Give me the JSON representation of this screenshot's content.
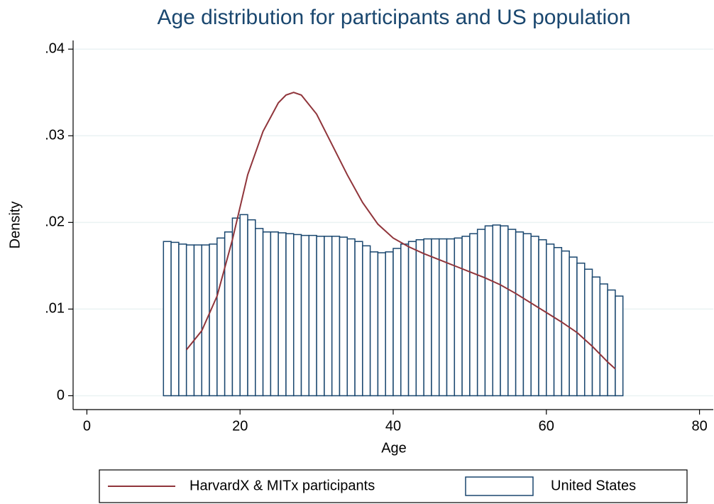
{
  "chart_data": {
    "type": "histogram",
    "title": "Age distribution for participants and US population",
    "x_label": "Age",
    "y_label": "Density",
    "xlim": [
      -1.8,
      81.8
    ],
    "ylim": [
      -0.0016,
      0.041
    ],
    "xticks": [
      0,
      20,
      40,
      60,
      80
    ],
    "yticks": [
      0,
      {
        "value": 0.01,
        "label": ".01"
      },
      {
        "value": 0.02,
        "label": ".02"
      },
      {
        "value": 0.03,
        "label": ".03"
      },
      {
        "value": 0.04,
        "label": ".04"
      }
    ],
    "grid": true,
    "legend": "bottom",
    "bins": [
      10,
      11,
      12,
      13,
      14,
      15,
      16,
      17,
      18,
      19,
      20,
      21,
      22,
      23,
      24,
      25,
      26,
      27,
      28,
      29,
      30,
      31,
      32,
      33,
      34,
      35,
      36,
      37,
      38,
      39,
      40,
      41,
      42,
      43,
      44,
      45,
      46,
      47,
      48,
      49,
      50,
      51,
      52,
      53,
      54,
      55,
      56,
      57,
      58,
      59,
      60,
      61,
      62,
      63,
      64,
      65,
      66,
      67,
      68,
      69,
      70
    ],
    "series": [
      {
        "name": "HarvardX & MITx participants",
        "type": "line",
        "color": "#90353b",
        "x": [
          13,
          15,
          17,
          19,
          21,
          23,
          25,
          26,
          27,
          28,
          30,
          32,
          34,
          36,
          38,
          40,
          42,
          44,
          46,
          48,
          50,
          52,
          54,
          56,
          58,
          60,
          62,
          64,
          66,
          68,
          69
        ],
        "values": [
          0.0053,
          0.0075,
          0.0115,
          0.018,
          0.0255,
          0.0305,
          0.0338,
          0.0347,
          0.035,
          0.0347,
          0.0325,
          0.029,
          0.0255,
          0.0223,
          0.0198,
          0.0182,
          0.0172,
          0.0164,
          0.0157,
          0.015,
          0.0143,
          0.0136,
          0.0128,
          0.0118,
          0.0107,
          0.0096,
          0.0085,
          0.0073,
          0.0057,
          0.0039,
          0.0031
        ]
      },
      {
        "name": "United States",
        "type": "histogram",
        "color": "#1a476f",
        "values": [
          0.0178,
          0.0177,
          0.0175,
          0.0174,
          0.0174,
          0.0174,
          0.0175,
          0.0182,
          0.0189,
          0.0205,
          0.0209,
          0.0203,
          0.0193,
          0.0189,
          0.0189,
          0.0188,
          0.0187,
          0.0186,
          0.0185,
          0.0185,
          0.0184,
          0.0184,
          0.0184,
          0.0183,
          0.0181,
          0.0178,
          0.0173,
          0.0166,
          0.0165,
          0.0166,
          0.017,
          0.0175,
          0.0178,
          0.018,
          0.0181,
          0.0181,
          0.0181,
          0.0181,
          0.0182,
          0.0184,
          0.0187,
          0.0192,
          0.0196,
          0.0197,
          0.0196,
          0.0192,
          0.0189,
          0.0187,
          0.0184,
          0.018,
          0.0175,
          0.0171,
          0.0167,
          0.016,
          0.0153,
          0.0146,
          0.0137,
          0.0129,
          0.0122,
          0.0115
        ]
      }
    ]
  }
}
